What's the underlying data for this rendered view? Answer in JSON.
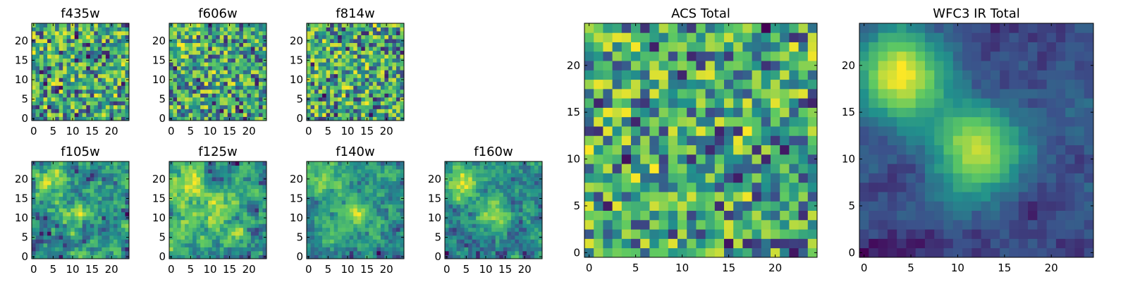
{
  "chart_data": {
    "type": "heatmap",
    "colormap": [
      "#440154",
      "#3b528b",
      "#21918c",
      "#5ec962",
      "#fde725"
    ],
    "value_range": [
      0,
      1
    ],
    "grid_size": 25,
    "panels": [
      {
        "title": "f435w",
        "xticks": [
          "0",
          "5",
          "10",
          "15",
          "20"
        ],
        "yticks": [
          "0",
          "5",
          "10",
          "15",
          "20"
        ],
        "xlim": [
          0,
          24
        ],
        "ylim": [
          0,
          24
        ]
      },
      {
        "title": "f606w",
        "xticks": [
          "0",
          "5",
          "10",
          "15",
          "20"
        ],
        "yticks": [
          "0",
          "5",
          "10",
          "15",
          "20"
        ],
        "xlim": [
          0,
          24
        ],
        "ylim": [
          0,
          24
        ]
      },
      {
        "title": "f814w",
        "xticks": [
          "0",
          "5",
          "10",
          "15",
          "20"
        ],
        "yticks": [
          "0",
          "5",
          "10",
          "15",
          "20"
        ],
        "xlim": [
          0,
          24
        ],
        "ylim": [
          0,
          24
        ]
      },
      {
        "title": "f105w",
        "xticks": [
          "0",
          "5",
          "10",
          "15",
          "20"
        ],
        "yticks": [
          "0",
          "5",
          "10",
          "15",
          "20"
        ],
        "xlim": [
          0,
          24
        ],
        "ylim": [
          0,
          24
        ]
      },
      {
        "title": "f125w",
        "xticks": [
          "0",
          "5",
          "10",
          "15",
          "20"
        ],
        "yticks": [
          "0",
          "5",
          "10",
          "15",
          "20"
        ],
        "xlim": [
          0,
          24
        ],
        "ylim": [
          0,
          24
        ]
      },
      {
        "title": "f140w",
        "xticks": [
          "0",
          "5",
          "10",
          "15",
          "20"
        ],
        "yticks": [
          "0",
          "5",
          "10",
          "15",
          "20"
        ],
        "xlim": [
          0,
          24
        ],
        "ylim": [
          0,
          24
        ]
      },
      {
        "title": "f160w",
        "xticks": [
          "0",
          "5",
          "10",
          "15",
          "20"
        ],
        "yticks": [
          "0",
          "5",
          "10",
          "15",
          "20"
        ],
        "xlim": [
          0,
          24
        ],
        "ylim": [
          0,
          24
        ]
      },
      {
        "title": "ACS Total",
        "xticks": [
          "0",
          "5",
          "10",
          "15",
          "20"
        ],
        "yticks": [
          "0",
          "5",
          "10",
          "15",
          "20"
        ],
        "xlim": [
          0,
          24
        ],
        "ylim": [
          0,
          24
        ]
      },
      {
        "title": "WFC3 IR Total",
        "xticks": [
          "0",
          "5",
          "10",
          "15",
          "20"
        ],
        "yticks": [
          "0",
          "5",
          "10",
          "15",
          "20"
        ],
        "xlim": [
          0,
          24
        ],
        "ylim": [
          0,
          24
        ]
      }
    ]
  }
}
